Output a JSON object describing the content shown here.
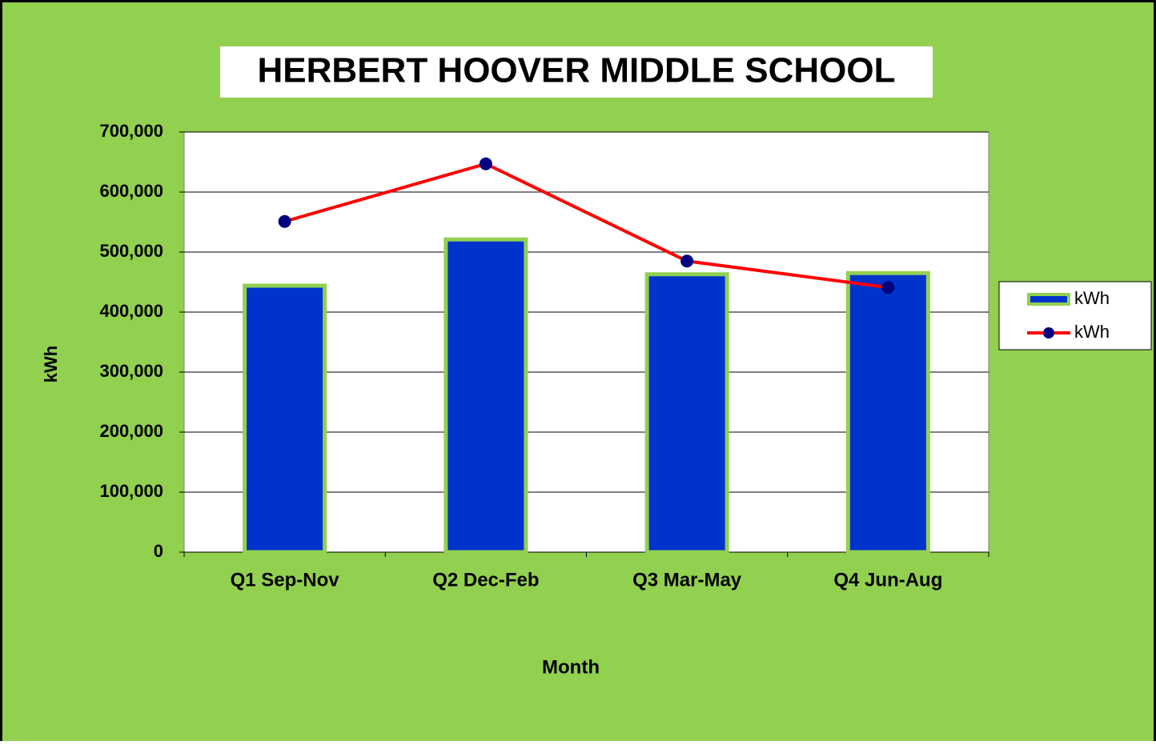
{
  "chart_data": {
    "type": "bar",
    "title": "HERBERT HOOVER MIDDLE SCHOOL",
    "y_label": "kWh",
    "x_label": "Month",
    "categories": [
      "Q1 Sep-Nov",
      "Q2 Dec-Feb",
      "Q3 Mar-May",
      "Q4 Jun-Aug"
    ],
    "series": [
      {
        "name": "kWh",
        "type": "bar",
        "color": "#0033cc",
        "edge_color": "#92d050",
        "values": [
          444000,
          521000,
          463000,
          465000
        ]
      },
      {
        "name": "kWh",
        "type": "line",
        "color": "#ff0000",
        "marker_color": "#000080",
        "values": [
          551000,
          647000,
          485000,
          441000
        ]
      }
    ],
    "ylim": [
      0,
      700000
    ],
    "yticks": [
      0,
      {
        "value": 100000,
        "label": "100,000"
      },
      {
        "value": 200000,
        "label": "200,000"
      },
      {
        "value": 300000,
        "label": "300,000"
      },
      {
        "value": 400000,
        "label": "400,000"
      },
      {
        "value": 500000,
        "label": "500,000"
      },
      {
        "value": 600000,
        "label": "600,000"
      },
      {
        "value": 700000,
        "label": "700,000"
      }
    ],
    "grid": true,
    "legend": "right"
  }
}
